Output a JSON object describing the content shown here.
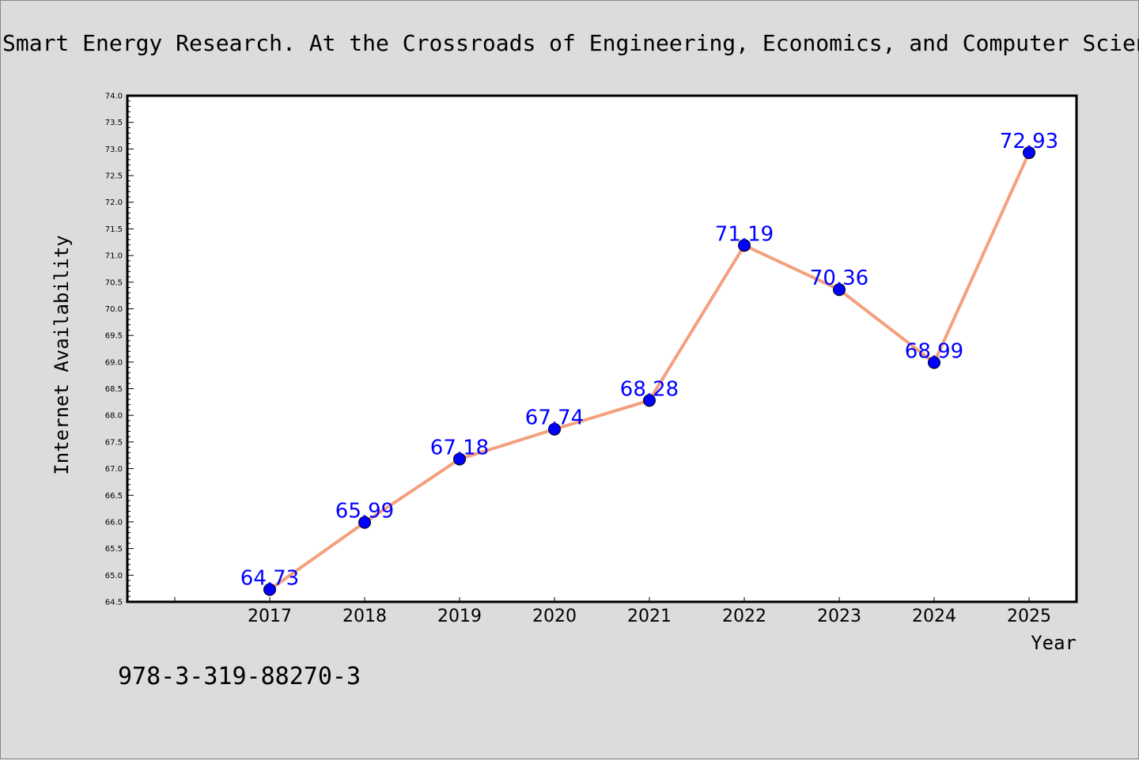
{
  "header": {
    "title": "Smart Energy Research. At the Crossroads of Engineering, Economics, and Computer Science"
  },
  "footer": {
    "code": "978-3-319-88270-3"
  },
  "chart_data": {
    "type": "line",
    "title": "Smart Energy Research. At the Crossroads of Engineering, Economics, and Computer Science",
    "xlabel": "Year",
    "ylabel": "Internet Availability",
    "x": [
      "2017",
      "2018",
      "2019",
      "2020",
      "2021",
      "2022",
      "2023",
      "2024",
      "2025"
    ],
    "values": [
      64.73,
      65.99,
      67.18,
      67.74,
      68.28,
      71.19,
      70.36,
      68.99,
      72.93
    ],
    "data_labels": [
      "64.73",
      "65.99",
      "67.18",
      "67.74",
      "68.28",
      "71.19",
      "70.36",
      "68.99",
      "72.93"
    ],
    "ylim": [
      64.5,
      74.0
    ],
    "yticks": [
      "64.5",
      "65.0",
      "65.5",
      "66.0",
      "66.5",
      "67.0",
      "67.5",
      "68.0",
      "68.5",
      "69.0",
      "69.5",
      "70.0",
      "70.5",
      "71.0",
      "71.5",
      "72.0",
      "72.5",
      "73.0",
      "73.5",
      "74.0"
    ],
    "grid": false,
    "legend": "none",
    "colors": {
      "line": "#f4a07e",
      "marker": "#0000ff",
      "marker_edge": "#000000",
      "data_label": "#0000ff",
      "plot_background": "#ffffff",
      "figure_background": "#dcdcdc"
    }
  }
}
